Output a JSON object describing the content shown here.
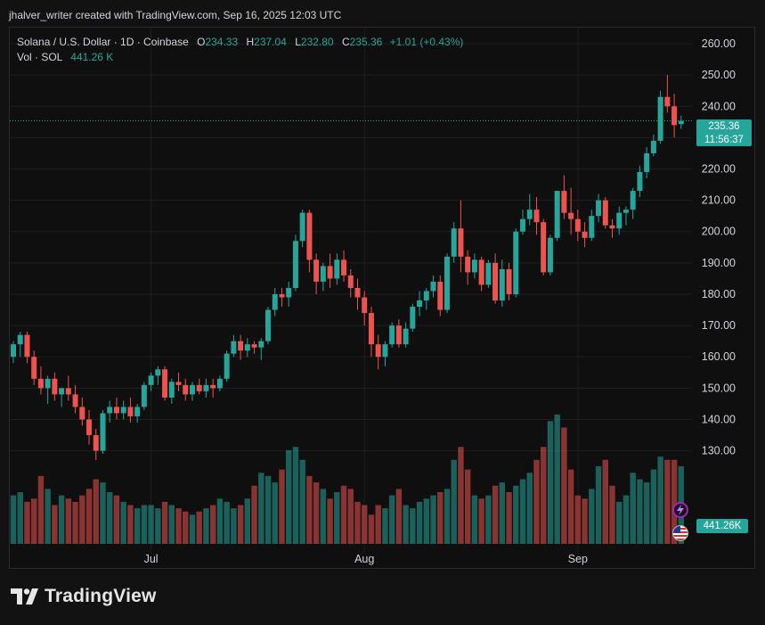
{
  "credit_line": "jhalver_writer created with TradingView.com, Sep 16, 2025 12:03 UTC",
  "legend": {
    "symbol": "Solana / U.S. Dollar · 1D · Coinbase",
    "o_label": "O",
    "o_value": "234.33",
    "h_label": "H",
    "h_value": "237.04",
    "l_label": "L",
    "l_value": "232.80",
    "c_label": "C",
    "c_value": "235.36",
    "change": "+1.01 (+0.43%)",
    "vol_label": "Vol · SOL",
    "vol_value": "441.26 K"
  },
  "price_tag": {
    "price": "235.36",
    "countdown": "11:56:37"
  },
  "volume_tag": "441.26K",
  "brand": "TradingView",
  "colors": {
    "up": "#26a69a",
    "down": "#ef5350",
    "background": "#0f0f0f",
    "text": "#d1d4dc"
  },
  "icons": [
    "tradingview-logo-icon",
    "flash-icon",
    "us-flag-icon"
  ],
  "chart_data": {
    "type": "candlestick",
    "title": "Solana / U.S. Dollar · 1D · Coinbase",
    "y_ticks": [
      130,
      140,
      150,
      160,
      170,
      180,
      190,
      200,
      210,
      220,
      230,
      240,
      250,
      260
    ],
    "y_tick_labels": [
      "130.00",
      "140.00",
      "150.00",
      "160.00",
      "170.00",
      "180.00",
      "190.00",
      "200.00",
      "210.00",
      "220.00",
      "230.00",
      "240.00",
      "250.00",
      "260.00"
    ],
    "ylim": [
      116.5,
      262
    ],
    "x_labels": [
      {
        "label": "Jul",
        "index": 20
      },
      {
        "label": "Aug",
        "index": 51
      },
      {
        "label": "Sep",
        "index": 82
      }
    ],
    "last_price": 235.36,
    "grid": true,
    "series": [
      {
        "name": "Price",
        "ohlc": [
          [
            160,
            165,
            158,
            164
          ],
          [
            164,
            168,
            160,
            167
          ],
          [
            167,
            168,
            158,
            160
          ],
          [
            160,
            162,
            151,
            153
          ],
          [
            153,
            157,
            148,
            150
          ],
          [
            150,
            154,
            145,
            153
          ],
          [
            153,
            155,
            146,
            148
          ],
          [
            148,
            150,
            144,
            150
          ],
          [
            150,
            154,
            146,
            148
          ],
          [
            148,
            151,
            142,
            144
          ],
          [
            144,
            147,
            138,
            140
          ],
          [
            140,
            143,
            132,
            135
          ],
          [
            135,
            137,
            127,
            130
          ],
          [
            130,
            143,
            129,
            142
          ],
          [
            142,
            146,
            139,
            144
          ],
          [
            144,
            147,
            140,
            142
          ],
          [
            142,
            146,
            140,
            144
          ],
          [
            144,
            147,
            139,
            141
          ],
          [
            141,
            145,
            139,
            144
          ],
          [
            144,
            152,
            143,
            151
          ],
          [
            151,
            155,
            149,
            154
          ],
          [
            154,
            157,
            151,
            156
          ],
          [
            156,
            157,
            146,
            147
          ],
          [
            147,
            153,
            145,
            152
          ],
          [
            152,
            155,
            149,
            151
          ],
          [
            151,
            153,
            146,
            148
          ],
          [
            148,
            152,
            146,
            151
          ],
          [
            151,
            153,
            148,
            149
          ],
          [
            149,
            153,
            147,
            151
          ],
          [
            151,
            153,
            147,
            150
          ],
          [
            150,
            154,
            149,
            153
          ],
          [
            153,
            162,
            152,
            161
          ],
          [
            161,
            167,
            160,
            165
          ],
          [
            165,
            167,
            159,
            162
          ],
          [
            162,
            166,
            160,
            164
          ],
          [
            164,
            165,
            161,
            163
          ],
          [
            163,
            166,
            159,
            165
          ],
          [
            165,
            176,
            164,
            175
          ],
          [
            175,
            182,
            173,
            180
          ],
          [
            180,
            182,
            176,
            179
          ],
          [
            179,
            184,
            176,
            182
          ],
          [
            182,
            199,
            181,
            197
          ],
          [
            197,
            207,
            195,
            206
          ],
          [
            206,
            207,
            187,
            191
          ],
          [
            191,
            193,
            180,
            184
          ],
          [
            184,
            190,
            181,
            189
          ],
          [
            189,
            193,
            182,
            185
          ],
          [
            185,
            193,
            183,
            191
          ],
          [
            191,
            194,
            184,
            186
          ],
          [
            186,
            188,
            179,
            182
          ],
          [
            182,
            185,
            175,
            179
          ],
          [
            179,
            181,
            170,
            174
          ],
          [
            174,
            176,
            160,
            164
          ],
          [
            164,
            167,
            156,
            160
          ],
          [
            160,
            165,
            157,
            164
          ],
          [
            164,
            171,
            163,
            170
          ],
          [
            170,
            172,
            163,
            164
          ],
          [
            164,
            171,
            163,
            169
          ],
          [
            169,
            177,
            168,
            176
          ],
          [
            176,
            181,
            173,
            178
          ],
          [
            178,
            182,
            175,
            181
          ],
          [
            181,
            186,
            179,
            184
          ],
          [
            184,
            186,
            173,
            175
          ],
          [
            175,
            193,
            174,
            192
          ],
          [
            192,
            203,
            190,
            201
          ],
          [
            201,
            210,
            187,
            192
          ],
          [
            192,
            194,
            183,
            187
          ],
          [
            187,
            193,
            185,
            191
          ],
          [
            191,
            192,
            181,
            183
          ],
          [
            183,
            191,
            182,
            190
          ],
          [
            190,
            193,
            177,
            178
          ],
          [
            178,
            191,
            176,
            188
          ],
          [
            188,
            190,
            178,
            180
          ],
          [
            180,
            201,
            179,
            200
          ],
          [
            200,
            207,
            199,
            204
          ],
          [
            204,
            212,
            202,
            207
          ],
          [
            207,
            211,
            199,
            203
          ],
          [
            203,
            204,
            186,
            187
          ],
          [
            187,
            199,
            186,
            198
          ],
          [
            198,
            213,
            197,
            213
          ],
          [
            213,
            218,
            204,
            206
          ],
          [
            206,
            214,
            199,
            204
          ],
          [
            204,
            207,
            197,
            200
          ],
          [
            200,
            203,
            195,
            198
          ],
          [
            198,
            207,
            197,
            205
          ],
          [
            205,
            212,
            203,
            210
          ],
          [
            210,
            211,
            201,
            202
          ],
          [
            202,
            204,
            198,
            201
          ],
          [
            201,
            208,
            199,
            206
          ],
          [
            206,
            208,
            202,
            207
          ],
          [
            207,
            214,
            204,
            213
          ],
          [
            213,
            221,
            211,
            219
          ],
          [
            219,
            227,
            217,
            225
          ],
          [
            225,
            231,
            224,
            229
          ],
          [
            229,
            245,
            228,
            243
          ],
          [
            243,
            250,
            238,
            240
          ],
          [
            240,
            244,
            230,
            234
          ],
          [
            234.33,
            237.04,
            232.8,
            235.36
          ]
        ]
      },
      {
        "name": "Volume",
        "values": [
          30,
          32,
          26,
          28,
          42,
          34,
          24,
          30,
          28,
          26,
          30,
          34,
          40,
          38,
          32,
          30,
          26,
          24,
          22,
          24,
          24,
          22,
          26,
          24,
          22,
          20,
          18,
          20,
          22,
          24,
          28,
          26,
          22,
          24,
          28,
          36,
          44,
          42,
          38,
          46,
          58,
          60,
          52,
          42,
          38,
          34,
          28,
          32,
          36,
          34,
          26,
          24,
          18,
          24,
          22,
          30,
          34,
          24,
          22,
          26,
          28,
          30,
          32,
          34,
          52,
          60,
          46,
          30,
          28,
          30,
          36,
          38,
          32,
          36,
          40,
          44,
          52,
          60,
          76,
          80,
          72,
          46,
          30,
          28,
          34,
          48,
          52,
          36,
          26,
          30,
          44,
          40,
          38,
          46,
          54,
          52,
          52,
          48
        ]
      }
    ]
  }
}
